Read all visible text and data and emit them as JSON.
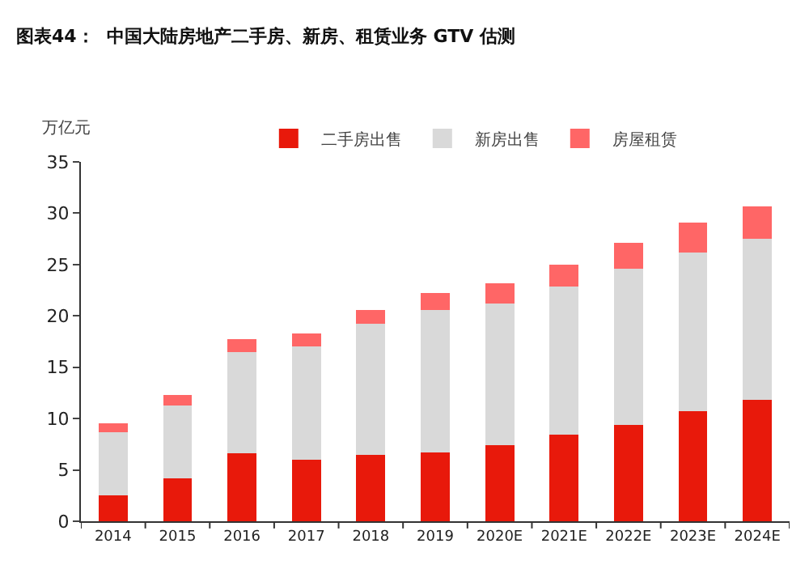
{
  "chart_data": {
    "type": "bar",
    "stacked": true,
    "title": "图表44：  中国大陆房地产二手房、新房、租赁业务 GTV 估测",
    "ylabel": "万亿元",
    "categories": [
      "2014",
      "2015",
      "2016",
      "2017",
      "2018",
      "2019",
      "2020E",
      "2021E",
      "2022E",
      "2023E",
      "2024E"
    ],
    "series": [
      {
        "name": "二手房出售",
        "color": "#e8190b",
        "values": [
          2.5,
          4.2,
          6.6,
          6.0,
          6.5,
          6.7,
          7.4,
          8.4,
          9.4,
          10.7,
          11.8
        ]
      },
      {
        "name": "新房出售",
        "color": "#d9d9d9",
        "values": [
          6.2,
          7.1,
          9.9,
          11.0,
          12.7,
          13.9,
          13.8,
          14.5,
          15.2,
          15.5,
          15.7
        ]
      },
      {
        "name": "房屋租赁",
        "color": "#ff6666",
        "values": [
          0.8,
          1.0,
          1.2,
          1.3,
          1.4,
          1.6,
          2.0,
          2.1,
          2.5,
          2.9,
          3.2
        ]
      }
    ],
    "ylim": [
      0,
      35
    ],
    "yticks": [
      0,
      5,
      10,
      15,
      20,
      25,
      30,
      35
    ],
    "legend": "top"
  }
}
